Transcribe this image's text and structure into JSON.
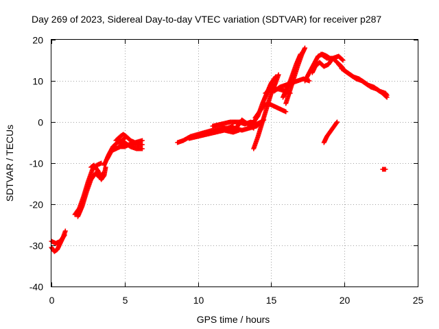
{
  "chart_data": {
    "type": "scatter",
    "title": "Day 269 of 2023, Sidereal Day-to-day VTEC variation (SDTVAR) for receiver p287",
    "xlabel": "GPS time / hours",
    "ylabel": "SDTVAR / TECUs",
    "xlim": [
      0,
      25
    ],
    "ylim": [
      -40,
      20
    ],
    "grid": true,
    "marker": "plus",
    "color": "#ff0000",
    "x_ticks": [
      0,
      5,
      10,
      15,
      20,
      25
    ],
    "y_ticks": [
      -40,
      -30,
      -20,
      -10,
      0,
      10,
      20
    ],
    "series": [
      {
        "name": "SDTVAR",
        "segments": [
          [
            [
              0.0,
              -30.5
            ],
            [
              0.2,
              -31.5
            ],
            [
              0.4,
              -31.0
            ],
            [
              0.6,
              -29.5
            ],
            [
              0.8,
              -28.0
            ],
            [
              0.95,
              -26.5
            ]
          ],
          [
            [
              0.0,
              -29.0
            ],
            [
              0.3,
              -29.5
            ],
            [
              0.6,
              -29.0
            ],
            [
              0.9,
              -27.5
            ]
          ],
          [
            [
              1.6,
              -22.5
            ],
            [
              1.9,
              -21.0
            ],
            [
              2.2,
              -18.0
            ],
            [
              2.5,
              -14.5
            ],
            [
              2.8,
              -11.5
            ],
            [
              3.1,
              -10.5
            ],
            [
              3.4,
              -10.0
            ]
          ],
          [
            [
              1.8,
              -23.0
            ],
            [
              2.1,
              -20.5
            ],
            [
              2.4,
              -17.0
            ],
            [
              2.7,
              -14.0
            ],
            [
              3.0,
              -12.5
            ],
            [
              3.3,
              -13.5
            ],
            [
              3.5,
              -12.5
            ]
          ],
          [
            [
              2.7,
              -11.0
            ],
            [
              2.9,
              -10.5
            ],
            [
              3.2,
              -12.0
            ],
            [
              3.4,
              -14.0
            ],
            [
              3.6,
              -13.0
            ],
            [
              3.7,
              -11.0
            ]
          ],
          [
            [
              3.6,
              -10.5
            ],
            [
              3.9,
              -8.0
            ],
            [
              4.2,
              -6.0
            ],
            [
              4.5,
              -5.0
            ],
            [
              4.8,
              -4.5
            ],
            [
              5.0,
              -4.0
            ]
          ],
          [
            [
              3.8,
              -9.0
            ],
            [
              4.1,
              -7.0
            ],
            [
              4.4,
              -6.5
            ],
            [
              4.7,
              -6.0
            ],
            [
              5.0,
              -6.0
            ],
            [
              5.3,
              -5.5
            ],
            [
              5.6,
              -5.5
            ],
            [
              6.0,
              -5.5
            ],
            [
              6.2,
              -5.5
            ]
          ],
          [
            [
              4.4,
              -4.5
            ],
            [
              4.7,
              -3.5
            ],
            [
              4.9,
              -3.0
            ],
            [
              5.1,
              -3.5
            ],
            [
              5.4,
              -4.5
            ],
            [
              5.7,
              -5.0
            ],
            [
              6.2,
              -4.5
            ]
          ],
          [
            [
              4.6,
              -6.0
            ],
            [
              5.0,
              -5.0
            ],
            [
              5.4,
              -6.0
            ],
            [
              5.8,
              -6.5
            ],
            [
              6.2,
              -6.5
            ]
          ],
          [
            [
              8.6,
              -5.0
            ],
            [
              9.0,
              -4.5
            ],
            [
              9.5,
              -3.5
            ],
            [
              10.0,
              -3.0
            ],
            [
              10.5,
              -2.5
            ],
            [
              11.0,
              -2.0
            ],
            [
              11.5,
              -1.5
            ],
            [
              12.0,
              -1.5
            ],
            [
              12.4,
              -1.0
            ]
          ],
          [
            [
              9.4,
              -4.0
            ],
            [
              10.0,
              -3.5
            ],
            [
              10.6,
              -3.0
            ],
            [
              11.2,
              -2.5
            ],
            [
              11.8,
              -2.0
            ],
            [
              12.4,
              -2.5
            ],
            [
              12.8,
              -2.0
            ]
          ],
          [
            [
              11.0,
              -1.0
            ],
            [
              11.6,
              -0.5
            ],
            [
              12.2,
              0.0
            ],
            [
              12.8,
              0.0
            ],
            [
              13.2,
              -0.5
            ],
            [
              13.6,
              0.0
            ],
            [
              14.0,
              -0.5
            ],
            [
              14.3,
              0.0
            ]
          ],
          [
            [
              12.5,
              -1.5
            ],
            [
              13.0,
              -2.0
            ],
            [
              13.5,
              -1.5
            ],
            [
              14.0,
              -1.0
            ],
            [
              14.5,
              0.5
            ]
          ],
          [
            [
              12.0,
              -2.0
            ],
            [
              12.6,
              -1.5
            ],
            [
              13.0,
              0.5
            ],
            [
              13.4,
              -0.5
            ],
            [
              13.8,
              -1.5
            ]
          ],
          [
            [
              13.4,
              -0.5
            ],
            [
              13.8,
              0.0
            ],
            [
              14.1,
              1.5
            ],
            [
              14.4,
              4.5
            ],
            [
              14.7,
              7.0
            ],
            [
              15.0,
              9.5
            ],
            [
              15.3,
              11.0
            ]
          ],
          [
            [
              13.8,
              -6.5
            ],
            [
              14.1,
              -3.5
            ],
            [
              14.4,
              0.0
            ],
            [
              14.7,
              3.5
            ],
            [
              15.0,
              7.0
            ],
            [
              15.3,
              9.5
            ],
            [
              15.5,
              11.5
            ]
          ],
          [
            [
              13.9,
              1.0
            ],
            [
              14.2,
              2.5
            ],
            [
              14.5,
              4.0
            ],
            [
              14.8,
              4.5
            ],
            [
              15.1,
              4.0
            ],
            [
              15.4,
              3.5
            ],
            [
              15.7,
              3.0
            ],
            [
              16.0,
              2.5
            ]
          ],
          [
            [
              15.2,
              7.5
            ],
            [
              15.6,
              8.5
            ],
            [
              16.0,
              9.0
            ],
            [
              16.4,
              9.5
            ],
            [
              16.8,
              10.0
            ],
            [
              17.2,
              10.5
            ],
            [
              17.6,
              10.0
            ]
          ],
          [
            [
              14.6,
              7.0
            ],
            [
              15.0,
              8.0
            ],
            [
              15.5,
              8.0
            ],
            [
              16.0,
              7.5
            ],
            [
              16.3,
              7.0
            ]
          ],
          [
            [
              16.0,
              4.5
            ],
            [
              16.4,
              9.0
            ],
            [
              16.8,
              13.5
            ],
            [
              17.1,
              16.5
            ],
            [
              17.3,
              18.0
            ]
          ],
          [
            [
              15.8,
              6.0
            ],
            [
              16.3,
              10.0
            ],
            [
              16.7,
              14.0
            ],
            [
              17.0,
              16.5
            ]
          ],
          [
            [
              17.3,
              10.0
            ],
            [
              17.6,
              12.0
            ],
            [
              17.9,
              14.0
            ],
            [
              18.2,
              16.0
            ],
            [
              18.5,
              16.5
            ],
            [
              18.8,
              16.0
            ],
            [
              19.0,
              15.5
            ]
          ],
          [
            [
              17.8,
              12.0
            ],
            [
              18.0,
              13.5
            ],
            [
              18.3,
              14.5
            ],
            [
              18.6,
              13.5
            ],
            [
              18.9,
              14.0
            ],
            [
              19.2,
              15.5
            ],
            [
              19.5,
              14.5
            ],
            [
              19.8,
              13.5
            ],
            [
              20.0,
              12.5
            ]
          ],
          [
            [
              18.4,
              16.5
            ],
            [
              18.8,
              15.5
            ],
            [
              19.2,
              15.5
            ],
            [
              19.6,
              16.0
            ],
            [
              19.9,
              15.0
            ]
          ],
          [
            [
              19.6,
              14.0
            ],
            [
              20.0,
              12.5
            ],
            [
              20.4,
              11.5
            ],
            [
              20.8,
              10.5
            ],
            [
              21.2,
              10.0
            ],
            [
              21.6,
              9.0
            ],
            [
              22.0,
              8.5
            ],
            [
              22.4,
              7.5
            ],
            [
              22.8,
              7.0
            ],
            [
              22.9,
              6.5
            ]
          ],
          [
            [
              19.8,
              13.0
            ],
            [
              20.2,
              12.0
            ],
            [
              20.6,
              11.0
            ],
            [
              21.0,
              10.5
            ],
            [
              21.4,
              9.5
            ],
            [
              21.8,
              8.5
            ],
            [
              22.2,
              8.0
            ],
            [
              22.6,
              7.0
            ],
            [
              22.9,
              6.0
            ]
          ],
          [
            [
              18.6,
              -5.0
            ],
            [
              18.8,
              -3.5
            ],
            [
              19.0,
              -2.5
            ],
            [
              19.2,
              -1.5
            ],
            [
              19.4,
              -0.5
            ],
            [
              19.5,
              0.0
            ]
          ],
          [
            [
              22.6,
              -11.5
            ],
            [
              22.8,
              -11.5
            ]
          ]
        ]
      }
    ]
  }
}
